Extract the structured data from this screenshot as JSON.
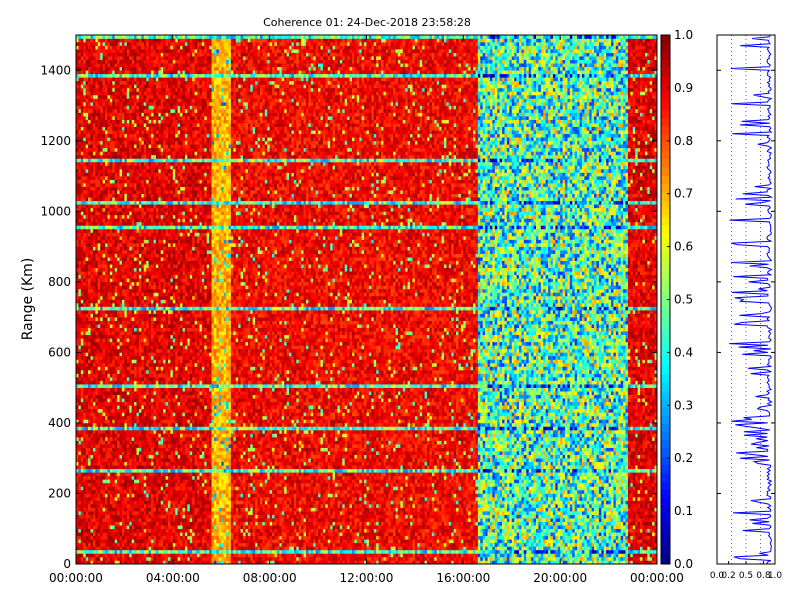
{
  "chart_data": [
    {
      "type": "heatmap",
      "title": "Coherence 01: 24-Dec-2018 23:58:28",
      "xlabel": "",
      "ylabel": "Range (Km)",
      "xticks": [
        "00:00:00",
        "04:00:00",
        "08:00:00",
        "12:00:00",
        "16:00:00",
        "20:00:00",
        "00:00:00"
      ],
      "xlim_hours": [
        0,
        24
      ],
      "yticks": [
        "0",
        "200",
        "400",
        "600",
        "800",
        "1000",
        "1200",
        "1400"
      ],
      "ylim": [
        0,
        1500
      ],
      "colorbar": {
        "colormap": "jet",
        "range": [
          0,
          1
        ],
        "ticks": [
          "0.0",
          "0.1",
          "0.2",
          "0.3",
          "0.4",
          "0.5",
          "0.6",
          "0.7",
          "0.8",
          "0.9",
          "1.0"
        ]
      },
      "coherence_regions": [
        {
          "from_hour": 0.0,
          "to_hour": 5.6,
          "typical": 0.9
        },
        {
          "from_hour": 5.6,
          "to_hour": 6.4,
          "typical": 0.7
        },
        {
          "from_hour": 6.4,
          "to_hour": 16.6,
          "typical": 0.88
        },
        {
          "from_hour": 16.6,
          "to_hour": 22.8,
          "typical": 0.45
        },
        {
          "from_hour": 22.8,
          "to_hour": 24.0,
          "typical": 0.9
        }
      ],
      "low_coherence_ranges_km": [
        30,
        265,
        380,
        500,
        725,
        950,
        1020,
        1140,
        1385,
        1490
      ]
    },
    {
      "type": "line",
      "title": "",
      "xlabel": "",
      "ylabel": "",
      "xlim": [
        0,
        1
      ],
      "ylim": [
        0,
        1500
      ],
      "xticks": [
        "0.0",
        "0.2",
        "0.5",
        "0.8",
        "1.0"
      ]
    }
  ]
}
